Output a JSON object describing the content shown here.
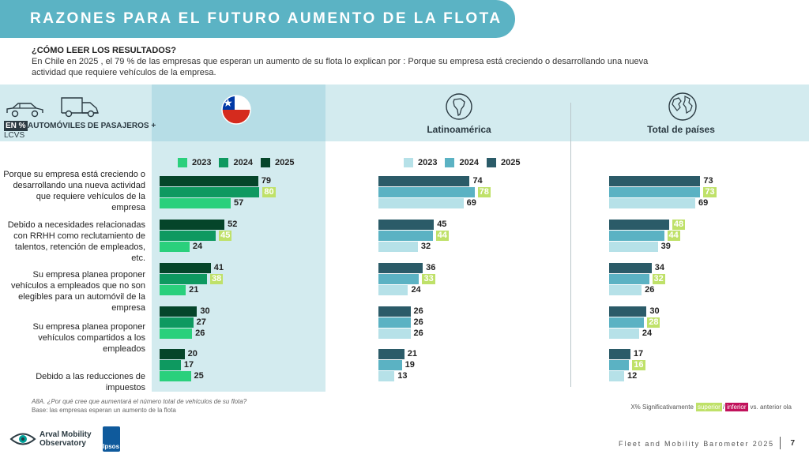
{
  "title": "RAZONES PARA EL FUTURO AUMENTO DE LA FLOTA",
  "how_to_read": {
    "title": "¿CÓMO LEER LOS RESULTADOS?",
    "body": "En Chile en 2025 , el 79 % de las empresas que esperan un aumento de su flota lo explican por : Porque su empresa está creciendo o desarrollando una nueva actividad que requiere vehículos de la empresa."
  },
  "segment": {
    "badge": "EN %",
    "label": "AUTOMÓVILES DE PASAJEROS +",
    "label2": "LCVS"
  },
  "regions": {
    "latam": "Latinoamérica",
    "total": "Total de países"
  },
  "colors": {
    "chile": {
      "2023": "#2ad07c",
      "2024": "#0e9960",
      "2025": "#05452a"
    },
    "other": {
      "2023": "#b6e1e8",
      "2024": "#5bb2c3",
      "2025": "#2b5b68"
    },
    "sig_up": "#bfe169",
    "sig_down": "#c1125b"
  },
  "chart_data": {
    "type": "bar",
    "orientation": "horizontal",
    "title": "RAZONES PARA EL FUTURO AUMENTO DE LA FLOTA",
    "unit": "%",
    "categories": [
      "Porque su empresa está creciendo o desarrollando una nueva actividad que requiere vehículos de la empresa",
      "Debido a necesidades relacionadas con RRHH como reclutamiento de talentos, retención de empleados, etc.",
      "Su empresa planea proponer vehículos a empleados que no son elegibles para un automóvil de la empresa",
      "Su empresa planea proponer vehículos compartidos a los empleados",
      "Debido a las reducciones de impuestos"
    ],
    "series_order": [
      "2025",
      "2024",
      "2023"
    ],
    "legend_years": [
      "2023",
      "2024",
      "2025"
    ],
    "panels": [
      {
        "name": "Chile",
        "series": [
          {
            "name": "2025",
            "values": [
              79,
              52,
              41,
              30,
              20
            ]
          },
          {
            "name": "2024",
            "values": [
              80,
              45,
              38,
              27,
              17
            ]
          },
          {
            "name": "2023",
            "values": [
              57,
              24,
              21,
              26,
              25
            ]
          }
        ],
        "significant_up": [
          [
            1,
            0
          ],
          [
            1,
            1
          ],
          [
            1,
            2
          ]
        ]
      },
      {
        "name": "Latinoamérica",
        "series": [
          {
            "name": "2025",
            "values": [
              74,
              45,
              36,
              26,
              21
            ]
          },
          {
            "name": "2024",
            "values": [
              78,
              44,
              33,
              26,
              19
            ]
          },
          {
            "name": "2023",
            "values": [
              69,
              32,
              24,
              26,
              13
            ]
          }
        ],
        "significant_up": [
          [
            1,
            0
          ],
          [
            1,
            1
          ],
          [
            1,
            2
          ]
        ]
      },
      {
        "name": "Total de países",
        "series": [
          {
            "name": "2025",
            "values": [
              73,
              48,
              34,
              30,
              17
            ]
          },
          {
            "name": "2024",
            "values": [
              73,
              44,
              32,
              28,
              16
            ]
          },
          {
            "name": "2023",
            "values": [
              69,
              39,
              26,
              24,
              12
            ]
          }
        ],
        "significant_up": [
          [
            1,
            0
          ],
          [
            0,
            1
          ],
          [
            1,
            1
          ],
          [
            1,
            2
          ],
          [
            1,
            3
          ],
          [
            1,
            4
          ]
        ]
      }
    ]
  },
  "footnotes": {
    "question": "A8A. ¿Por qué cree que aumentará el número total de vehículos de su flota?",
    "base": "Base: las empresas esperan un aumento de la flota"
  },
  "sig_legend": {
    "prefix": "X% Significativamente",
    "superior": "superior",
    "sep": "/",
    "inferior": "inferior",
    "suffix": "vs. anterior ola"
  },
  "logos": {
    "arval_line1": "Arval Mobility",
    "arval_line2": "Observatory",
    "ipsos": "Ipsos"
  },
  "footer": {
    "barometer": "Fleet and Mobility Barometer 2025",
    "page": "7"
  }
}
